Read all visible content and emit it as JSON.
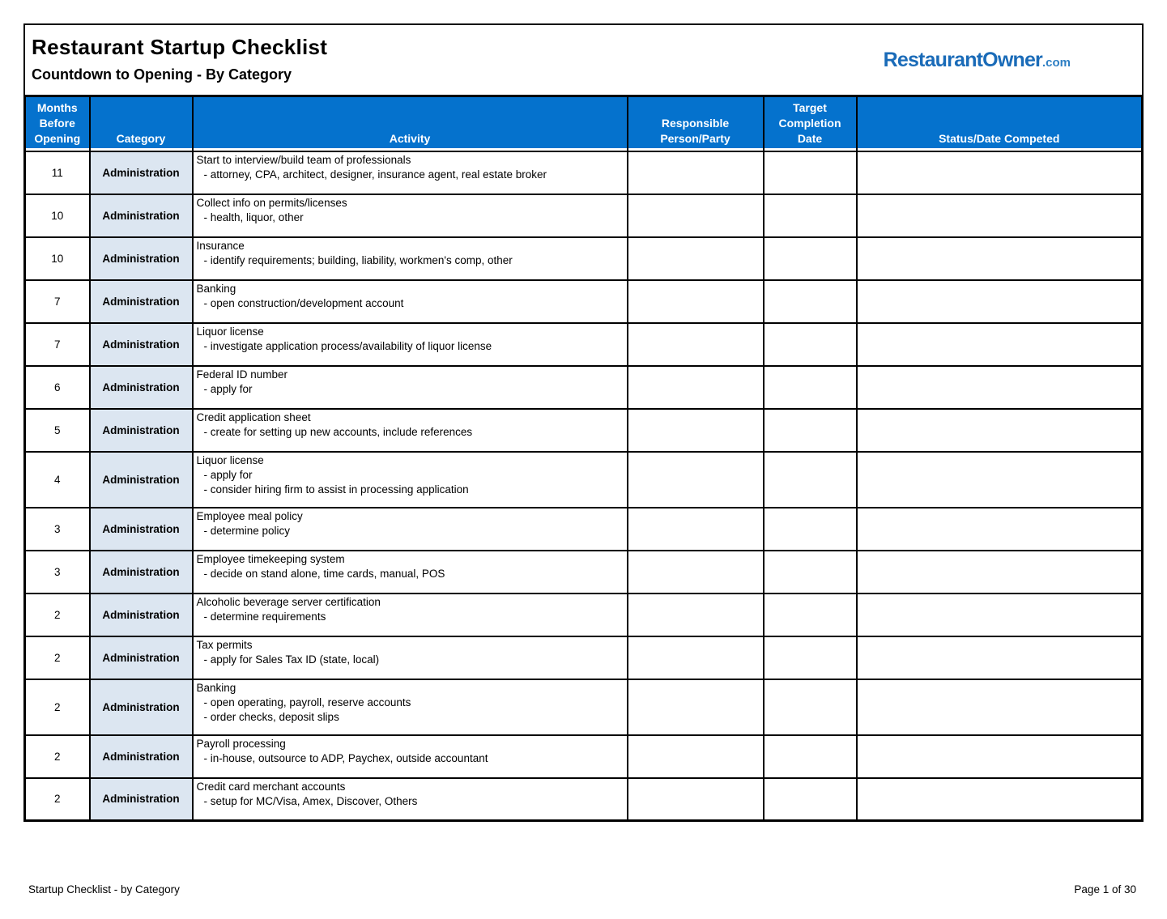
{
  "header": {
    "title": "Restaurant Startup Checklist",
    "subtitle": "Countdown to Opening  - By Category"
  },
  "logo": {
    "main": "RestaurantOwner",
    "suffix": ".com"
  },
  "colors": {
    "table_header_bg": "#0572CD",
    "category_cell_bg": "#DCE6F1",
    "logo_blue": "#1A6BB8"
  },
  "table": {
    "headers": [
      "Months\nBefore\nOpening",
      "Category",
      "Activity",
      "Responsible\nPerson/Party",
      "Target\nCompletion\nDate",
      "Status/Date Competed"
    ],
    "rows": [
      {
        "months": "11",
        "category": "Administration",
        "activity_lines": [
          "Start to interview/build team of professionals",
          "- attorney, CPA, architect, designer, insurance agent, real estate broker"
        ]
      },
      {
        "months": "10",
        "category": "Administration",
        "activity_lines": [
          "Collect info on permits/licenses",
          "- health, liquor, other"
        ]
      },
      {
        "months": "10",
        "category": "Administration",
        "activity_lines": [
          "Insurance",
          "- identify requirements; building, liability, workmen's comp, other"
        ]
      },
      {
        "months": "7",
        "category": "Administration",
        "activity_lines": [
          "Banking",
          "- open construction/development account"
        ]
      },
      {
        "months": "7",
        "category": "Administration",
        "activity_lines": [
          "Liquor license",
          "- investigate application process/availability of liquor license"
        ]
      },
      {
        "months": "6",
        "category": "Administration",
        "activity_lines": [
          "Federal ID number",
          "- apply for"
        ]
      },
      {
        "months": "5",
        "category": "Administration",
        "activity_lines": [
          "Credit application sheet",
          "- create for setting up new accounts, include references"
        ]
      },
      {
        "months": "4",
        "category": "Administration",
        "activity_lines": [
          "Liquor license",
          "- apply for",
          "- consider hiring firm to assist in processing application"
        ]
      },
      {
        "months": "3",
        "category": "Administration",
        "activity_lines": [
          "Employee meal policy",
          "- determine policy"
        ]
      },
      {
        "months": "3",
        "category": "Administration",
        "activity_lines": [
          "Employee timekeeping system",
          "- decide on stand alone, time cards, manual, POS"
        ]
      },
      {
        "months": "2",
        "category": "Administration",
        "activity_lines": [
          "Alcoholic beverage server certification",
          "- determine requirements"
        ]
      },
      {
        "months": "2",
        "category": "Administration",
        "activity_lines": [
          "Tax permits",
          "- apply for Sales Tax ID (state, local)"
        ]
      },
      {
        "months": "2",
        "category": "Administration",
        "activity_lines": [
          "Banking",
          "- open operating, payroll, reserve accounts",
          "- order checks, deposit slips"
        ]
      },
      {
        "months": "2",
        "category": "Administration",
        "activity_lines": [
          "Payroll processing",
          "- in-house, outsource to ADP, Paychex, outside accountant"
        ]
      },
      {
        "months": "2",
        "category": "Administration",
        "activity_lines": [
          "Credit card merchant accounts",
          "- setup for MC/Visa, Amex, Discover, Others"
        ]
      }
    ]
  },
  "footer": {
    "left": "Startup Checklist - by Category",
    "right": "Page 1 of 30"
  }
}
